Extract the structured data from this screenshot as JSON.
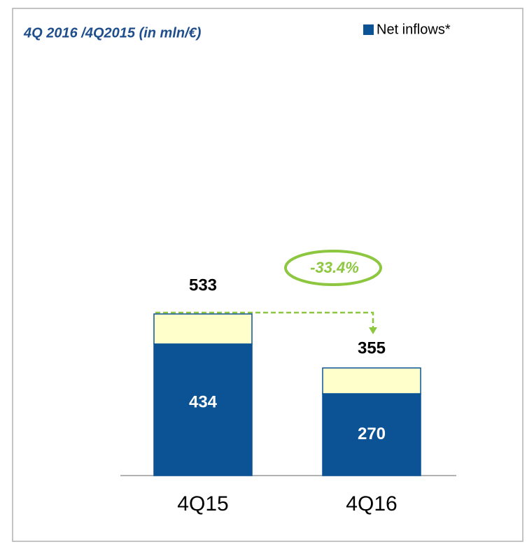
{
  "chart_data": {
    "type": "stacked_bar",
    "title": "4Q 2016 /4Q2015 (in mln/€)",
    "categories": [
      "4Q15",
      "4Q16"
    ],
    "series": [
      {
        "name": "Net inflows*",
        "color": "#0b5394",
        "values": [
          434,
          270
        ]
      },
      {
        "color": "#ffffcc",
        "values": [
          99,
          85
        ]
      }
    ],
    "totals": [
      533,
      355
    ],
    "annotation": "-33.4%"
  }
}
